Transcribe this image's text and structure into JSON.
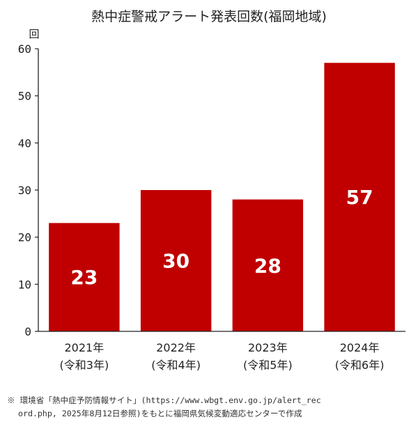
{
  "chart_data": {
    "type": "bar",
    "title": "熱中症警戒アラート発表回数(福岡地域)",
    "ylabel": "回",
    "ylim": [
      0,
      60
    ],
    "yticks": [
      0,
      10,
      20,
      30,
      40,
      50,
      60
    ],
    "categories": [
      [
        "2021年",
        "(令和3年)"
      ],
      [
        "2022年",
        "(令和4年)"
      ],
      [
        "2023年",
        "(令和5年)"
      ],
      [
        "2024年",
        "(令和6年)"
      ]
    ],
    "values": [
      23,
      30,
      28,
      57
    ],
    "bar_color": "#c00000",
    "data_label_color": "#ffffff",
    "grid": false,
    "legend": "none"
  },
  "source_note": {
    "line1": "※ 環境省「熱中症予防情報サイト」(https://www.wbgt.env.go.jp/alert_rec",
    "line2": "ord.php, 2025年8月12日参照)をもとに福岡県気候変動適応センターで作成"
  }
}
